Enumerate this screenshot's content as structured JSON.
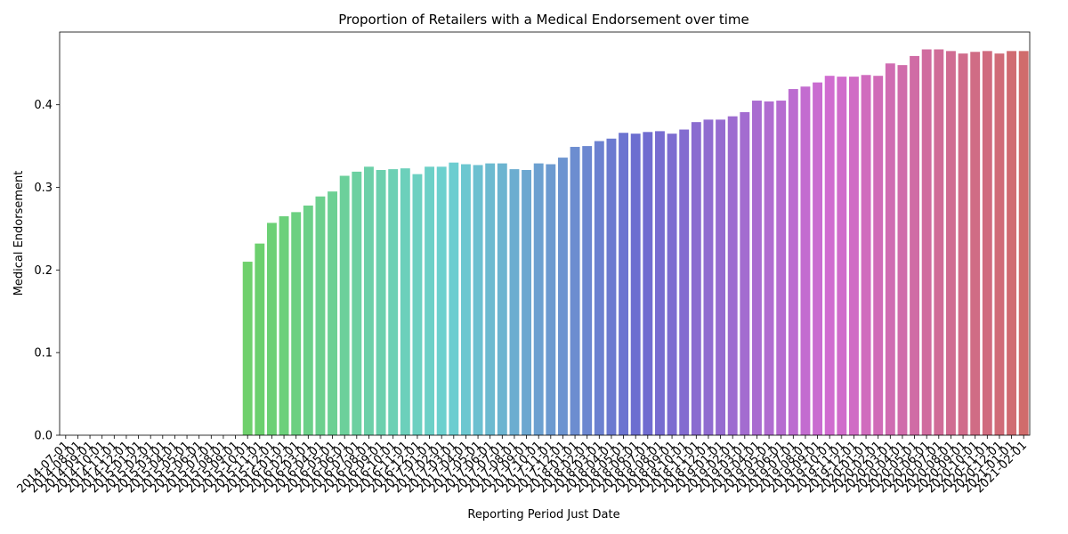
{
  "chart_data": {
    "type": "bar",
    "title": "Proportion of Retailers with a Medical Endorsement over time",
    "xlabel": "Reporting Period Just Date",
    "ylabel": "Medical Endorsement",
    "ylim": [
      0,
      0.488
    ],
    "yticks": [
      "0.0",
      "0.1",
      "0.2",
      "0.3",
      "0.4"
    ],
    "grid": false,
    "legend": "none",
    "categories": [
      "2014-07-01",
      "2014-08-01",
      "2014-09-01",
      "2014-10-01",
      "2014-11-01",
      "2014-12-01",
      "2015-01-01",
      "2015-02-01",
      "2015-03-01",
      "2015-04-01",
      "2015-05-01",
      "2015-06-01",
      "2015-07-01",
      "2015-08-01",
      "2015-09-01",
      "2015-10-01",
      "2015-11-01",
      "2015-12-01",
      "2016-01-01",
      "2016-02-01",
      "2016-03-01",
      "2016-04-01",
      "2016-05-01",
      "2016-06-01",
      "2016-07-01",
      "2016-08-01",
      "2016-09-01",
      "2016-10-01",
      "2016-11-01",
      "2016-12-01",
      "2017-01-01",
      "2017-02-01",
      "2017-03-01",
      "2017-04-01",
      "2017-05-01",
      "2017-06-01",
      "2017-07-01",
      "2017-08-01",
      "2017-09-01",
      "2017-10-01",
      "2017-11-01",
      "2017-12-01",
      "2018-01-01",
      "2018-02-01",
      "2018-03-01",
      "2018-04-01",
      "2018-05-01",
      "2018-06-01",
      "2018-07-01",
      "2018-08-01",
      "2018-09-01",
      "2018-10-01",
      "2018-11-01",
      "2018-12-01",
      "2019-01-01",
      "2019-02-01",
      "2019-03-01",
      "2019-04-01",
      "2019-05-01",
      "2019-06-01",
      "2019-07-01",
      "2019-08-01",
      "2019-09-01",
      "2019-10-01",
      "2019-11-01",
      "2019-12-01",
      "2020-01-01",
      "2020-02-01",
      "2020-03-01",
      "2020-04-01",
      "2020-05-01",
      "2020-06-01",
      "2020-07-01",
      "2020-08-01",
      "2020-09-01",
      "2020-10-01",
      "2020-11-01",
      "2020-12-01",
      "2021-01-01",
      "2021-02-01"
    ],
    "values": [
      0,
      0,
      0,
      0,
      0,
      0,
      0,
      0,
      0,
      0,
      0,
      0,
      0,
      0,
      0,
      0.21,
      0.232,
      0.257,
      0.265,
      0.27,
      0.278,
      0.289,
      0.295,
      0.314,
      0.319,
      0.325,
      0.321,
      0.322,
      0.323,
      0.316,
      0.325,
      0.325,
      0.33,
      0.328,
      0.327,
      0.329,
      0.329,
      0.322,
      0.321,
      0.329,
      0.328,
      0.336,
      0.349,
      0.35,
      0.356,
      0.359,
      0.366,
      0.365,
      0.367,
      0.368,
      0.365,
      0.37,
      0.379,
      0.382,
      0.382,
      0.386,
      0.391,
      0.405,
      0.404,
      0.405,
      0.419,
      0.422,
      0.427,
      0.435,
      0.434,
      0.434,
      0.436,
      0.435,
      0.45,
      0.448,
      0.459,
      0.467,
      0.467,
      0.465,
      0.462,
      0.464,
      0.465,
      0.462,
      0.465,
      0.465
    ],
    "colors": {
      "hue_start": 61,
      "hue_end": 360,
      "saturation": 0.52,
      "lightness": 0.62
    }
  }
}
